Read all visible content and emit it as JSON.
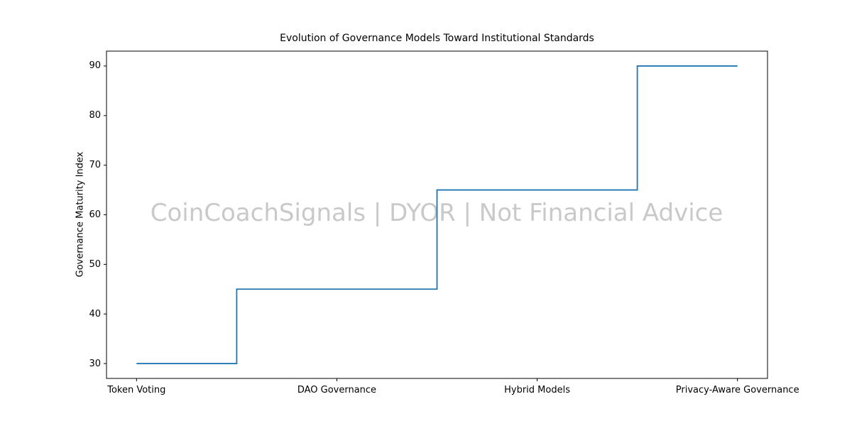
{
  "chart_data": {
    "type": "line",
    "subtype": "step-mid",
    "title": "Evolution of Governance Models Toward Institutional Standards",
    "xlabel": "",
    "ylabel": "Governance Maturity Index",
    "categories": [
      "Token Voting",
      "DAO Governance",
      "Hybrid Models",
      "Privacy-Aware Governance"
    ],
    "values": [
      30,
      45,
      65,
      90
    ],
    "yticks": [
      30,
      40,
      50,
      60,
      70,
      80,
      90
    ],
    "ylim": [
      27,
      93
    ],
    "xlim": [
      -0.15,
      3.15
    ],
    "grid": false,
    "legend": "none",
    "line_color": "#1f77b4",
    "axes_color": "#000000"
  },
  "watermark": {
    "text": "CoinCoachSignals | DYOR | Not Financial Advice",
    "color": "#c9c9c9"
  }
}
